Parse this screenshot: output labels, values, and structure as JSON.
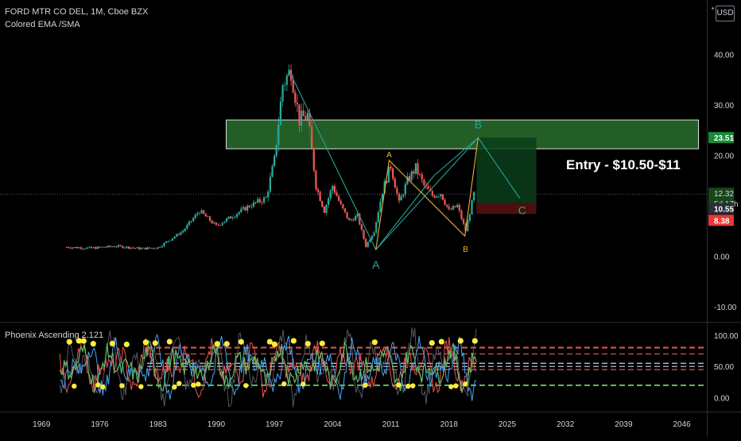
{
  "header": {
    "symbol_line": "FORD MTR CO DEL, 1M, Cboe BZX",
    "indicator_line": "Colored EMA /SMA"
  },
  "currency_label": "USD",
  "sub_indicator_title": "Phoenix Ascending 2.121",
  "annotation": "Entry - $10.50-$11",
  "pattern_labels": {
    "A_teal": "A",
    "B_teal": "B",
    "C_teal": "C",
    "A_yellow": "A",
    "B_yellow": "B"
  },
  "colors": {
    "background": "#000000",
    "up": "#26a69a",
    "down": "#ef5350",
    "zone": "#2e7d32",
    "pattern_teal": "#26a69a",
    "pattern_yellow": "#f0b429",
    "dash_red": "#ef5350",
    "dash_white": "#d1d4dc",
    "dash_green": "#66bb6a"
  },
  "price_badges": {
    "top": "23.51",
    "last": "12.32",
    "countdown": "5d 17h",
    "entry": "10.55",
    "stop": "8.38"
  },
  "chart_data": [
    {
      "type": "line",
      "title": "FORD MTR CO DEL, 1M, Cboe BZX",
      "x_ticks": [
        "1969",
        "1976",
        "1983",
        "1990",
        "1997",
        "2004",
        "2011",
        "2018",
        "2025",
        "2032",
        "2039",
        "2046"
      ],
      "y_ticks": [
        "40.00",
        "30.00",
        "20.00",
        "10.00",
        "0.00",
        "-10.00"
      ],
      "ylim": [
        -13,
        50
      ],
      "xlim": [
        1964,
        2049
      ],
      "series": [
        {
          "x": [
            1972,
            1975,
            1978,
            1981,
            1983,
            1986,
            1988,
            1990,
            1992,
            1994,
            1996,
            1997,
            1998,
            1999,
            2000,
            2001,
            2002,
            2003,
            2004,
            2005,
            2006,
            2007,
            2008,
            2009,
            2010,
            2011,
            2012,
            2013,
            2014,
            2015,
            2016,
            2017,
            2018,
            2019,
            2020,
            2021
          ],
          "values": [
            1.8,
            1.6,
            2.0,
            1.5,
            1.7,
            5.0,
            9.0,
            6.0,
            8.0,
            10.0,
            11.5,
            19.0,
            34.0,
            37.0,
            27.0,
            28.0,
            14.0,
            9.0,
            14.0,
            10.0,
            7.0,
            8.0,
            2.0,
            5.0,
            13.0,
            18.0,
            10.5,
            15.0,
            17.5,
            14.0,
            12.0,
            12.5,
            9.0,
            10.0,
            5.0,
            12.3
          ]
        }
      ],
      "harmonic_pattern_teal": [
        {
          "label": "A",
          "x": 2009.2,
          "y": 1.3
        },
        {
          "label": "B",
          "x": 2021.5,
          "y": 23.5
        },
        {
          "label": "C",
          "x": 2026.5,
          "y": 11.5
        }
      ],
      "harmonic_pattern_yellow": [
        {
          "label": "A",
          "x": 2010.8,
          "y": 19.0
        },
        {
          "label": "B",
          "x": 2019.9,
          "y": 4.0
        }
      ],
      "zone": {
        "y_low": 21.3,
        "y_high": 27.0
      },
      "entry_range": [
        10.5,
        11
      ]
    },
    {
      "type": "line",
      "title": "Phoenix Ascending 2.121",
      "y_ticks": [
        "100.00",
        "50.00",
        "0.00"
      ],
      "ylim": [
        -22,
        120
      ],
      "reference_levels": [
        80,
        70,
        55,
        50,
        45,
        20
      ]
    }
  ]
}
